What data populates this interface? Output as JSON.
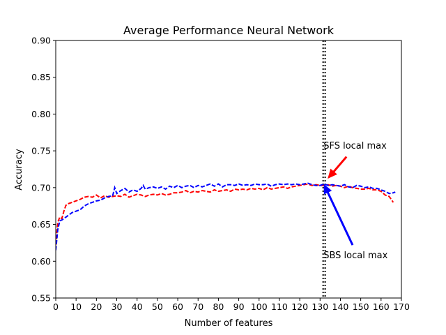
{
  "chart_data": {
    "type": "line",
    "title": "Average Performance Neural Network",
    "xlabel": "Number of features",
    "ylabel": "Accuracy",
    "xlim": [
      0,
      170
    ],
    "ylim": [
      0.55,
      0.9
    ],
    "xticks": [
      "0",
      "10",
      "20",
      "30",
      "40",
      "50",
      "60",
      "70",
      "80",
      "90",
      "100",
      "110",
      "120",
      "130",
      "140",
      "150",
      "160",
      "170"
    ],
    "yticks": [
      "0.55",
      "0.60",
      "0.65",
      "0.70",
      "0.75",
      "0.80",
      "0.85",
      "0.90"
    ],
    "grid": false,
    "series": [
      {
        "color": "#ff0000",
        "style": "dashed",
        "x": [
          0,
          1,
          2,
          3,
          4,
          5,
          6,
          7,
          8,
          10,
          12,
          14,
          16,
          18,
          20,
          22,
          24,
          26,
          28,
          30,
          32,
          34,
          36,
          38,
          40,
          42,
          44,
          46,
          48,
          50,
          52,
          54,
          56,
          58,
          60,
          62,
          64,
          66,
          68,
          70,
          72,
          74,
          76,
          78,
          80,
          82,
          84,
          86,
          88,
          90,
          92,
          94,
          96,
          98,
          100,
          102,
          104,
          106,
          108,
          110,
          112,
          114,
          116,
          118,
          120,
          122,
          124,
          126,
          128,
          130,
          132,
          134,
          136,
          138,
          140,
          142,
          144,
          146,
          148,
          150,
          152,
          154,
          156,
          158,
          160,
          162,
          164,
          166
        ],
        "y": [
          0.622,
          0.653,
          0.66,
          0.658,
          0.668,
          0.676,
          0.678,
          0.679,
          0.68,
          0.682,
          0.684,
          0.687,
          0.688,
          0.687,
          0.69,
          0.686,
          0.689,
          0.687,
          0.688,
          0.689,
          0.688,
          0.691,
          0.687,
          0.689,
          0.691,
          0.69,
          0.688,
          0.69,
          0.691,
          0.69,
          0.692,
          0.69,
          0.691,
          0.693,
          0.693,
          0.694,
          0.696,
          0.693,
          0.695,
          0.694,
          0.696,
          0.695,
          0.694,
          0.697,
          0.695,
          0.696,
          0.697,
          0.695,
          0.698,
          0.697,
          0.698,
          0.697,
          0.699,
          0.698,
          0.699,
          0.697,
          0.7,
          0.698,
          0.699,
          0.7,
          0.701,
          0.699,
          0.701,
          0.702,
          0.703,
          0.704,
          0.705,
          0.703,
          0.704,
          0.703,
          0.703,
          0.704,
          0.702,
          0.703,
          0.702,
          0.7,
          0.702,
          0.7,
          0.699,
          0.698,
          0.698,
          0.699,
          0.697,
          0.697,
          0.695,
          0.69,
          0.688,
          0.68
        ]
      },
      {
        "color": "#0000ff",
        "style": "dashed",
        "x": [
          0,
          1,
          2,
          3,
          4,
          5,
          6,
          7,
          8,
          10,
          12,
          14,
          16,
          18,
          20,
          22,
          24,
          26,
          28,
          29,
          30,
          32,
          34,
          36,
          38,
          40,
          42,
          43,
          44,
          46,
          48,
          50,
          52,
          54,
          56,
          58,
          60,
          62,
          64,
          66,
          68,
          70,
          72,
          74,
          76,
          78,
          80,
          82,
          84,
          86,
          88,
          90,
          92,
          94,
          96,
          98,
          100,
          102,
          104,
          106,
          108,
          110,
          112,
          114,
          116,
          118,
          120,
          122,
          124,
          126,
          128,
          130,
          132,
          134,
          136,
          138,
          140,
          142,
          144,
          146,
          148,
          150,
          152,
          154,
          156,
          158,
          160,
          162,
          164,
          166,
          167
        ],
        "y": [
          0.615,
          0.643,
          0.655,
          0.656,
          0.658,
          0.66,
          0.662,
          0.664,
          0.666,
          0.668,
          0.67,
          0.675,
          0.678,
          0.68,
          0.682,
          0.683,
          0.686,
          0.688,
          0.689,
          0.7,
          0.692,
          0.696,
          0.699,
          0.694,
          0.697,
          0.695,
          0.699,
          0.703,
          0.698,
          0.7,
          0.701,
          0.699,
          0.701,
          0.698,
          0.702,
          0.7,
          0.703,
          0.7,
          0.702,
          0.703,
          0.7,
          0.703,
          0.701,
          0.703,
          0.705,
          0.702,
          0.705,
          0.701,
          0.704,
          0.704,
          0.703,
          0.705,
          0.703,
          0.704,
          0.703,
          0.705,
          0.704,
          0.704,
          0.705,
          0.702,
          0.704,
          0.705,
          0.704,
          0.705,
          0.704,
          0.705,
          0.704,
          0.705,
          0.706,
          0.704,
          0.703,
          0.703,
          0.705,
          0.703,
          0.704,
          0.703,
          0.702,
          0.704,
          0.701,
          0.7,
          0.703,
          0.702,
          0.7,
          0.701,
          0.699,
          0.699,
          0.697,
          0.695,
          0.692,
          0.693,
          0.694
        ]
      }
    ],
    "vlines": [
      {
        "x": 131.5,
        "color": "#000000",
        "style": "dotted"
      },
      {
        "x": 132.5,
        "color": "#000000",
        "style": "dotted"
      }
    ],
    "annotations": [
      {
        "text": "SFS local max",
        "text_x": 131,
        "text_y": 0.755,
        "arrow_from": [
          143,
          0.742
        ],
        "arrow_to": [
          134,
          0.713
        ],
        "color": "#ff0000"
      },
      {
        "text": "SBS local max",
        "text_x": 131,
        "text_y": 0.606,
        "arrow_from": [
          146,
          0.622
        ],
        "arrow_to": [
          132,
          0.704
        ],
        "color": "#0000ff"
      }
    ]
  }
}
